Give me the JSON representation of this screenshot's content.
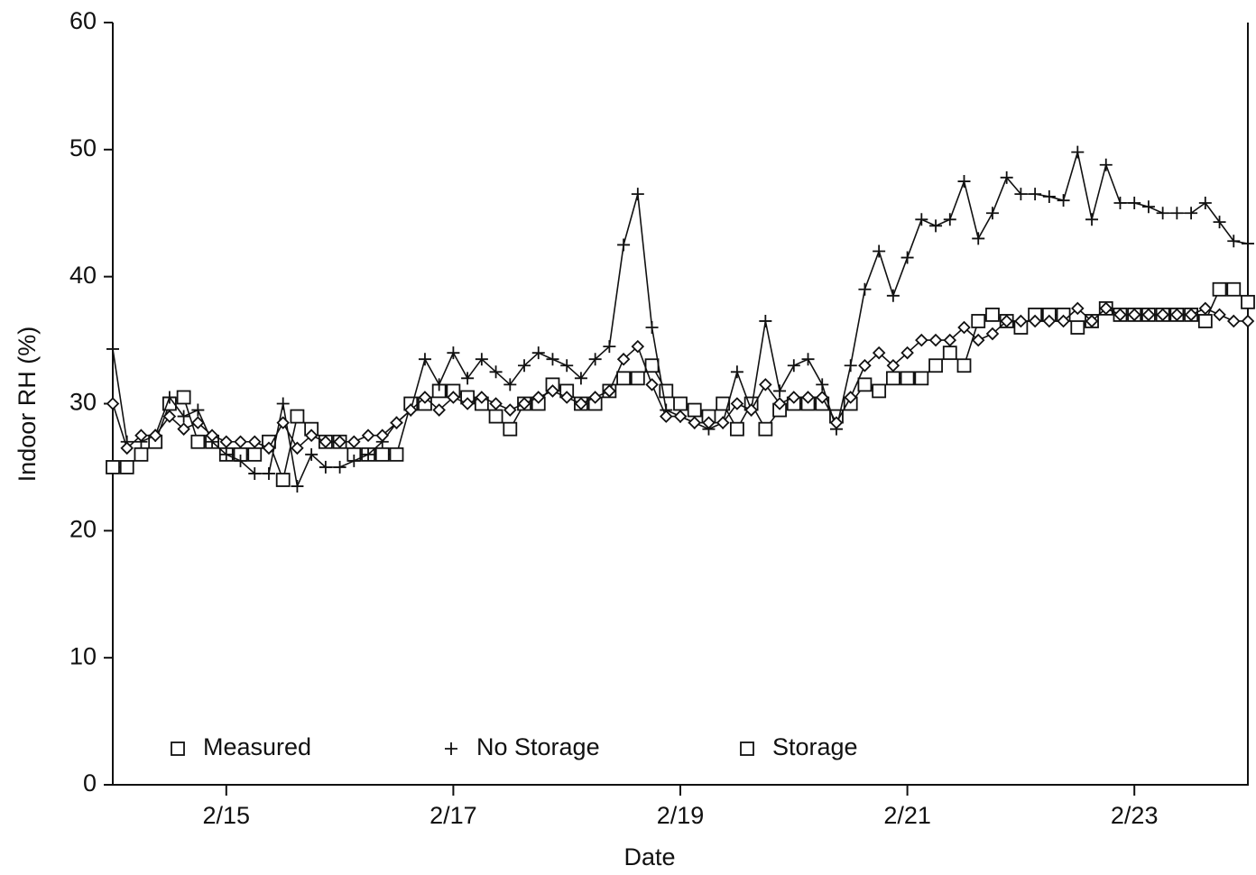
{
  "chart_data": {
    "type": "line",
    "xlabel": "Date",
    "ylabel": "Indoor RH (%)",
    "x": [
      14,
      14.125,
      14.25,
      14.375,
      14.5,
      14.625,
      14.75,
      14.875,
      15,
      15.125,
      15.25,
      15.375,
      15.5,
      15.625,
      15.75,
      15.875,
      16,
      16.125,
      16.25,
      16.375,
      16.5,
      16.625,
      16.75,
      16.875,
      17,
      17.125,
      17.25,
      17.375,
      17.5,
      17.625,
      17.75,
      17.875,
      18,
      18.125,
      18.25,
      18.375,
      18.5,
      18.625,
      18.75,
      18.875,
      19,
      19.125,
      19.25,
      19.375,
      19.5,
      19.625,
      19.75,
      19.875,
      20,
      20.125,
      20.25,
      20.375,
      20.5,
      20.625,
      20.75,
      20.875,
      21,
      21.125,
      21.25,
      21.375,
      21.5,
      21.625,
      21.75,
      21.875,
      22,
      22.125,
      22.25,
      22.375,
      22.5,
      22.625,
      22.75,
      22.875,
      23,
      23.125,
      23.25,
      23.375,
      23.5,
      23.625,
      23.75,
      23.875,
      24
    ],
    "series": [
      {
        "name": "Measured",
        "marker": "square",
        "color": "#111111",
        "values": [
          25,
          25,
          26,
          27,
          30,
          30.5,
          27,
          27,
          26,
          26,
          26,
          27,
          24,
          29,
          28,
          27,
          27,
          26,
          26,
          26,
          26,
          30,
          30,
          31,
          31,
          30.5,
          30,
          29,
          28,
          30,
          30,
          31.5,
          31,
          30,
          30,
          31,
          32,
          32,
          33,
          31,
          30,
          29.5,
          29,
          30,
          28,
          30,
          28,
          29.5,
          30,
          30,
          30,
          29,
          30,
          31.5,
          31,
          32,
          32,
          32,
          33,
          34,
          33,
          36.5,
          37,
          36.5,
          36,
          37,
          37,
          37,
          36,
          36.5,
          37.5,
          37,
          37,
          37,
          37,
          37,
          37,
          36.5,
          39,
          39,
          38
        ]
      },
      {
        "name": "No Storage",
        "marker": "plus",
        "color": "#111111",
        "values": [
          34.3,
          27,
          27,
          27.5,
          30.5,
          29,
          29.5,
          27,
          26,
          25.5,
          24.5,
          24.5,
          30,
          23.5,
          26,
          25,
          25,
          25.5,
          26,
          27,
          28.5,
          29.5,
          33.5,
          31.5,
          34,
          32,
          33.5,
          32.5,
          31.5,
          33,
          34,
          33.5,
          33,
          32,
          33.5,
          34.5,
          42.5,
          46.5,
          36,
          29.5,
          29,
          28.5,
          28,
          28.5,
          32.5,
          29.5,
          36.5,
          31,
          33,
          33.5,
          31.5,
          28,
          33,
          39,
          42,
          38.5,
          41.5,
          44.5,
          44,
          44.5,
          47.5,
          43,
          45,
          47.8,
          46.5,
          46.5,
          46.3,
          46,
          49.8,
          44.5,
          48.8,
          45.8,
          45.8,
          45.5,
          45,
          45,
          45,
          45.8,
          44.3,
          42.8,
          42.6
        ]
      },
      {
        "name": "Storage",
        "marker": "diamond",
        "color": "#111111",
        "values": [
          30,
          26.5,
          27.5,
          27.5,
          29,
          28,
          28.5,
          27.5,
          27,
          27,
          27,
          26.5,
          28.5,
          26.5,
          27.5,
          27,
          27,
          27,
          27.5,
          27.5,
          28.5,
          29.5,
          30.5,
          29.5,
          30.5,
          30,
          30.5,
          30,
          29.5,
          30,
          30.5,
          31,
          30.5,
          30,
          30.5,
          31,
          33.5,
          34.5,
          31.5,
          29,
          29,
          28.5,
          28.5,
          28.5,
          30,
          29.5,
          31.5,
          30,
          30.5,
          30.5,
          30.5,
          28.5,
          30.5,
          33,
          34,
          33,
          34,
          35,
          35,
          35,
          36,
          35,
          35.5,
          36.5,
          36.5,
          36.5,
          36.5,
          36.5,
          37.5,
          36.5,
          37.5,
          37,
          37,
          37,
          37,
          37,
          37,
          37.5,
          37,
          36.5,
          36.5
        ]
      }
    ],
    "xlim": [
      14,
      24
    ],
    "xticks": [
      {
        "value": 15,
        "label": "2/15"
      },
      {
        "value": 17,
        "label": "2/17"
      },
      {
        "value": 19,
        "label": "2/19"
      },
      {
        "value": 21,
        "label": "2/21"
      },
      {
        "value": 23,
        "label": "2/23"
      }
    ],
    "ylim": [
      0,
      60
    ],
    "yticks": [
      0,
      10,
      20,
      30,
      40,
      50,
      60
    ],
    "legend": "lower left"
  }
}
